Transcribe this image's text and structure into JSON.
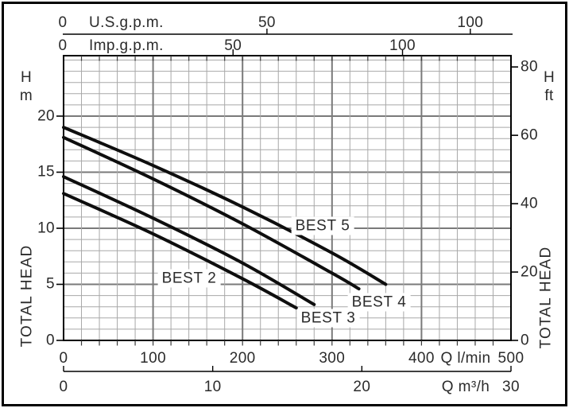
{
  "theme": {
    "background": "#ffffff",
    "frame_border": "#000000",
    "grid_minor": "#a8a8a8",
    "grid_major": "#7a7a7a",
    "axis_color": "#000000",
    "tick_color": "#3a3a3a",
    "curve_color": "#0e0e0e",
    "text_color": "#2b2b2b"
  },
  "chart_data": {
    "type": "line",
    "title": "",
    "grid": true,
    "series": [
      {
        "name": "BEST 5",
        "points_q_lmin_h_m": [
          [
            0,
            19.0
          ],
          [
            100,
            15.6
          ],
          [
            200,
            11.9
          ],
          [
            300,
            7.8
          ],
          [
            360,
            5.0
          ]
        ]
      },
      {
        "name": "BEST 4",
        "points_q_lmin_h_m": [
          [
            0,
            18.1
          ],
          [
            100,
            14.4
          ],
          [
            200,
            10.4
          ],
          [
            300,
            6.0
          ],
          [
            330,
            4.6
          ]
        ]
      },
      {
        "name": "BEST 3",
        "points_q_lmin_h_m": [
          [
            0,
            14.6
          ],
          [
            100,
            10.9
          ],
          [
            200,
            6.9
          ],
          [
            280,
            3.2
          ]
        ]
      },
      {
        "name": "BEST 2",
        "points_q_lmin_h_m": [
          [
            0,
            13.1
          ],
          [
            100,
            9.5
          ],
          [
            200,
            5.5
          ],
          [
            260,
            2.9
          ]
        ]
      }
    ],
    "x_axes": {
      "bottom_primary": {
        "label": "Q l/min",
        "range": [
          0,
          500
        ],
        "major_ticks": [
          0,
          100,
          200,
          300,
          400,
          500
        ],
        "minor_step": 20
      },
      "bottom_secondary": {
        "label": "Q m³/h",
        "range": [
          0,
          30
        ],
        "ticks": [
          0,
          10,
          20,
          30
        ]
      },
      "top_us": {
        "label": "U.S.g.p.m.",
        "range": [
          0,
          110
        ],
        "ticks": [
          0,
          50,
          100
        ]
      },
      "top_imp": {
        "label": "Imp.g.p.m.",
        "range": [
          0,
          132
        ],
        "ticks": [
          0,
          50,
          100
        ]
      }
    },
    "y_axes": {
      "left": {
        "unit_line1": "H",
        "unit_line2": "m",
        "axis_title": "TOTAL HEAD",
        "range_m": [
          0,
          25.39
        ],
        "major_ticks": [
          0,
          5,
          10,
          15,
          20
        ],
        "minor_step": 1
      },
      "right": {
        "unit_line1": "H",
        "unit_line2": "ft",
        "axis_title": "TOTAL HEAD",
        "range_ft": [
          0,
          83.3
        ],
        "ticks": [
          0,
          20,
          40,
          60,
          80
        ]
      }
    }
  }
}
